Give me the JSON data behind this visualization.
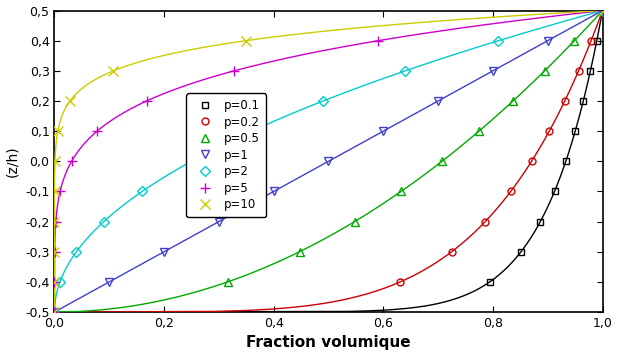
{
  "p_values": [
    0.1,
    0.2,
    0.5,
    1,
    2,
    5,
    10
  ],
  "p_labels": [
    "p=0.1",
    "p=0.2",
    "p=0.5",
    "p=1",
    "p=2",
    "p=5",
    "p=10"
  ],
  "colors": [
    "black",
    "#cc0000",
    "#00aa00",
    "#4040cc",
    "#00cccc",
    "#cc00cc",
    "#cccc00"
  ],
  "markers": [
    "s",
    "o",
    "^",
    "v",
    "D",
    "+",
    "x"
  ],
  "marker_facecolors": [
    "none",
    "none",
    "none",
    "none",
    "none",
    "#cc00cc",
    "#cccc00"
  ],
  "marker_sizes": [
    5,
    5,
    6,
    6,
    5,
    7,
    7
  ],
  "n_marker_points": 11,
  "xlim": [
    0.0,
    1.0
  ],
  "ylim": [
    -0.5,
    0.5
  ],
  "xlabel": "Fraction volumique",
  "ylabel": "(z/h)",
  "xlabel_fontsize": 11,
  "ylabel_fontsize": 10,
  "tick_fontsize": 9,
  "legend_fontsize": 8.5,
  "figsize": [
    6.18,
    3.56
  ],
  "dpi": 100,
  "background_color": "white",
  "xticks": [
    0.0,
    0.2,
    0.4,
    0.6,
    0.8,
    1.0
  ],
  "yticks": [
    -0.5,
    -0.4,
    -0.3,
    -0.2,
    -0.1,
    0.0,
    0.1,
    0.2,
    0.3,
    0.4,
    0.5
  ],
  "linewidth": 1.0,
  "spine_linewidth": 1.2
}
